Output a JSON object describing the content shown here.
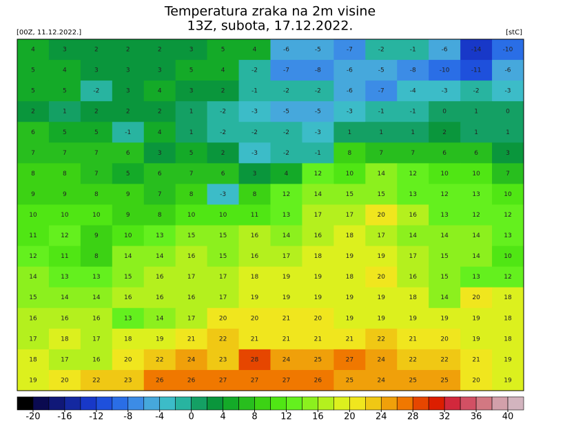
{
  "header": {
    "title": "Temperatura zraka na 2m visine",
    "subtitle": "13Z, subota, 17.12.2022.",
    "run": "[00Z, 11.12.2022.]",
    "unit": "[stC]"
  },
  "map": {
    "type": "field",
    "values": [
      [
        4,
        3,
        2,
        2,
        2,
        3,
        5,
        4,
        -6,
        -5,
        -7,
        -2,
        -1,
        -6,
        -14,
        -10
      ],
      [
        5,
        4,
        3,
        3,
        3,
        5,
        4,
        -2,
        -7,
        -8,
        -6,
        -5,
        -8,
        -10,
        -11,
        -6
      ],
      [
        5,
        5,
        -2,
        3,
        4,
        3,
        2,
        -1,
        -2,
        -2,
        -6,
        -7,
        -4,
        -3,
        -2,
        -3
      ],
      [
        2,
        1,
        2,
        2,
        2,
        1,
        -2,
        -3,
        -5,
        -5,
        -3,
        -1,
        -1,
        0,
        1,
        0
      ],
      [
        6,
        5,
        5,
        -1,
        4,
        1,
        -2,
        -2,
        -2,
        -3,
        1,
        1,
        1,
        2,
        1,
        1
      ],
      [
        7,
        7,
        7,
        6,
        3,
        5,
        2,
        -3,
        -2,
        -1,
        8,
        7,
        7,
        6,
        6,
        3
      ],
      [
        8,
        8,
        7,
        5,
        6,
        7,
        6,
        3,
        4,
        12,
        10,
        14,
        12,
        10,
        10,
        7
      ],
      [
        9,
        9,
        8,
        9,
        7,
        8,
        -3,
        8,
        12,
        14,
        15,
        15,
        13,
        12,
        13,
        10
      ],
      [
        10,
        10,
        10,
        9,
        8,
        10,
        10,
        11,
        13,
        17,
        17,
        20,
        16,
        13,
        12,
        12
      ],
      [
        11,
        12,
        9,
        10,
        13,
        15,
        15,
        16,
        14,
        16,
        18,
        17,
        14,
        14,
        14,
        13
      ],
      [
        12,
        11,
        8,
        14,
        14,
        16,
        15,
        16,
        17,
        18,
        19,
        19,
        17,
        15,
        14,
        10
      ],
      [
        14,
        13,
        13,
        15,
        16,
        17,
        17,
        18,
        19,
        19,
        18,
        20,
        16,
        15,
        13,
        12
      ],
      [
        15,
        14,
        14,
        16,
        16,
        16,
        17,
        19,
        19,
        19,
        19,
        19,
        18,
        14,
        20,
        18
      ],
      [
        16,
        16,
        16,
        13,
        14,
        17,
        20,
        20,
        21,
        20,
        19,
        19,
        19,
        19,
        19,
        18
      ],
      [
        17,
        18,
        17,
        18,
        19,
        21,
        22,
        21,
        21,
        21,
        21,
        22,
        21,
        20,
        19,
        18
      ],
      [
        18,
        17,
        16,
        20,
        22,
        24,
        23,
        28,
        24,
        25,
        27,
        24,
        22,
        22,
        21,
        19
      ],
      [
        19,
        20,
        22,
        23,
        26,
        26,
        27,
        27,
        27,
        26,
        25,
        24,
        25,
        25,
        20,
        19
      ]
    ]
  },
  "colorbar": {
    "lim": [
      -22,
      42
    ],
    "ticks": [
      -20,
      -16,
      -12,
      -8,
      -4,
      0,
      4,
      8,
      12,
      16,
      20,
      24,
      28,
      32,
      36,
      40
    ],
    "colors": [
      "#000000",
      "#0a0a50",
      "#101878",
      "#1428a0",
      "#1838c8",
      "#1e50dc",
      "#2a6ee6",
      "#3c8ce6",
      "#46a8dc",
      "#3cbcc8",
      "#28b4a0",
      "#14a064",
      "#0a963c",
      "#14aa28",
      "#28be1e",
      "#3cd214",
      "#50e614",
      "#64f01e",
      "#8cf01e",
      "#b4f01e",
      "#dcf01e",
      "#f0e61e",
      "#f0c814",
      "#f0a00a",
      "#f07800",
      "#e64600",
      "#dc1e00",
      "#d2283c",
      "#d25064",
      "#d27882",
      "#d2a0aa",
      "#d2b4be"
    ]
  }
}
